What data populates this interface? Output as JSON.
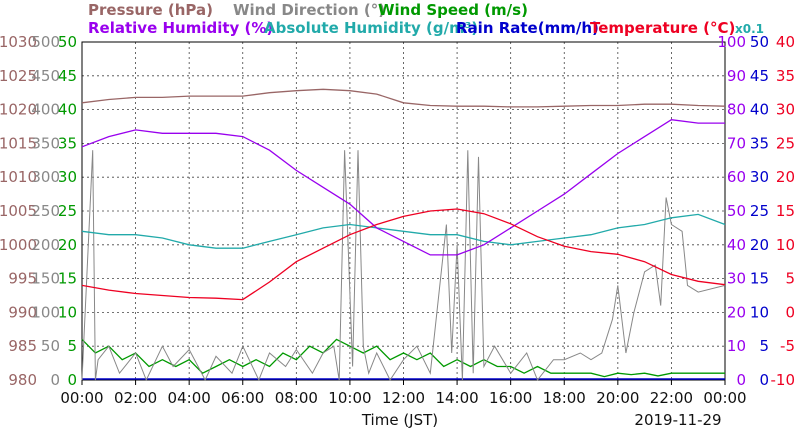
{
  "chart_data": {
    "type": "line",
    "title": "",
    "date": "2019-11-29",
    "xlabel": "Time (JST)",
    "x_ticks": [
      "00:00",
      "02:00",
      "04:00",
      "06:00",
      "08:00",
      "10:00",
      "12:00",
      "14:00",
      "16:00",
      "18:00",
      "20:00",
      "22:00",
      "00:00"
    ],
    "grid": true,
    "legend_rows": [
      [
        {
          "label": "Pressure (hPa)",
          "color": "#996666"
        },
        {
          "label": "Wind Direction (°)",
          "color": "#888888"
        },
        {
          "label": "Wind Speed (m/s)",
          "color": "#009900"
        }
      ],
      [
        {
          "label": "Relative Humidity (%)",
          "color": "#9900ee"
        },
        {
          "label": "Absolute Humidity (g/m³)",
          "color": "#22aaaa"
        },
        {
          "label": "Rain Rate(mm/h)",
          "color": "#0000cc"
        },
        {
          "label": "Temperature (°C)",
          "color": "#ee0022"
        },
        {
          "label": "x0.1",
          "color": "#22aaaa"
        }
      ]
    ],
    "axes": {
      "pressure": {
        "color": "#996666",
        "ticks": [
          "980",
          "985",
          "990",
          "995",
          "1000",
          "1005",
          "1010",
          "1015",
          "1020",
          "1025",
          "1030"
        ],
        "range": [
          980,
          1030
        ]
      },
      "wind_direction": {
        "color": "#888888",
        "ticks": [
          "0",
          "50",
          "100",
          "150",
          "200",
          "250",
          "300",
          "350",
          "400",
          "450",
          "500"
        ],
        "range": [
          0,
          500
        ]
      },
      "wind_speed": {
        "color": "#009900",
        "ticks": [
          "0",
          "5",
          "10",
          "15",
          "20",
          "25",
          "30",
          "35",
          "40",
          "45",
          "50"
        ],
        "range": [
          0,
          50
        ]
      },
      "relative_humidity": {
        "color": "#9900ee",
        "ticks": [
          "0",
          "10",
          "20",
          "30",
          "40",
          "50",
          "60",
          "70",
          "80",
          "90",
          "100"
        ],
        "range": [
          0,
          100
        ]
      },
      "rain_rate": {
        "color": "#0000cc",
        "ticks": [
          "0",
          "5",
          "10",
          "15",
          "20",
          "25",
          "30",
          "35",
          "40",
          "45",
          "50"
        ],
        "range": [
          0,
          50
        ]
      },
      "temperature": {
        "color": "#ee0022",
        "ticks": [
          "-10",
          "-5",
          "0",
          "5",
          "10",
          "15",
          "20",
          "25",
          "30",
          "35",
          "40"
        ],
        "range": [
          -10,
          40
        ]
      }
    },
    "series": [
      {
        "name": "Pressure (hPa)",
        "axis": "pressure",
        "color": "#996666",
        "x": [
          0,
          1,
          2,
          3,
          4,
          5,
          6,
          7,
          8,
          9,
          10,
          11,
          12,
          13,
          14,
          15,
          16,
          17,
          18,
          19,
          20,
          21,
          22,
          23,
          24
        ],
        "y": [
          1021,
          1021.5,
          1021.8,
          1021.8,
          1022,
          1022,
          1022,
          1022.5,
          1022.8,
          1023,
          1022.8,
          1022.3,
          1021,
          1020.6,
          1020.5,
          1020.5,
          1020.4,
          1020.4,
          1020.5,
          1020.6,
          1020.6,
          1020.8,
          1020.8,
          1020.6,
          1020.5
        ]
      },
      {
        "name": "Relative Humidity (%)",
        "axis": "relative_humidity",
        "color": "#9900ee",
        "x": [
          0,
          1,
          2,
          3,
          4,
          5,
          6,
          7,
          8,
          9,
          10,
          11,
          12,
          13,
          14,
          15,
          16,
          17,
          18,
          19,
          20,
          21,
          22,
          23,
          24
        ],
        "y": [
          69,
          72,
          74,
          73,
          73,
          73,
          72,
          68,
          62,
          57,
          52,
          45,
          41,
          37,
          37,
          40,
          45,
          50,
          55,
          61,
          67,
          72,
          77,
          76,
          76
        ]
      },
      {
        "name": "Absolute Humidity (g/m³)",
        "axis": "relative_humidity",
        "color": "#22aaaa",
        "x": [
          0,
          1,
          2,
          3,
          4,
          5,
          6,
          7,
          8,
          9,
          10,
          11,
          12,
          13,
          14,
          15,
          16,
          17,
          18,
          19,
          20,
          21,
          22,
          23,
          24
        ],
        "y": [
          44,
          43,
          43,
          42,
          40,
          39,
          39,
          41,
          43,
          45,
          46,
          45,
          44,
          43,
          43,
          41,
          40,
          41,
          42,
          43,
          45,
          46,
          48,
          49,
          46
        ]
      },
      {
        "name": "Temperature (°C)",
        "axis": "temperature",
        "color": "#ee0022",
        "x": [
          0,
          1,
          2,
          3,
          4,
          5,
          6,
          7,
          8,
          9,
          10,
          11,
          12,
          13,
          14,
          15,
          16,
          17,
          18,
          19,
          20,
          21,
          22,
          23,
          24
        ],
        "y": [
          4,
          3.3,
          2.8,
          2.5,
          2.2,
          2.1,
          1.9,
          4.5,
          7.5,
          9.5,
          11.5,
          13,
          14.2,
          15,
          15.3,
          14.6,
          13.1,
          11.2,
          9.8,
          9,
          8.6,
          7.5,
          5.6,
          4.6,
          4.1
        ]
      },
      {
        "name": "Wind Direction (°)",
        "axis": "wind_direction",
        "color": "#888888",
        "x": [
          0,
          0.4,
          0.5,
          0.6,
          1,
          1.4,
          2,
          2.4,
          3,
          3.4,
          4,
          4.6,
          5,
          5.6,
          6,
          6.6,
          7,
          7.6,
          8,
          8.6,
          9,
          9.4,
          9.6,
          9.8,
          10.1,
          10.3,
          10.5,
          10.7,
          11,
          11.5,
          12,
          12.5,
          13,
          13.6,
          13.8,
          14,
          14.2,
          14.4,
          14.6,
          14.8,
          15,
          15.4,
          16,
          16.6,
          17,
          17.6,
          18,
          18.6,
          19,
          19.4,
          19.8,
          20,
          20.3,
          20.6,
          21,
          21.4,
          21.6,
          21.8,
          22,
          22.4,
          22.6,
          23,
          24
        ],
        "y": [
          0,
          340,
          0,
          30,
          50,
          10,
          40,
          0,
          50,
          20,
          45,
          0,
          35,
          10,
          50,
          0,
          40,
          20,
          45,
          10,
          40,
          50,
          0,
          340,
          20,
          340,
          50,
          10,
          40,
          0,
          30,
          50,
          10,
          230,
          40,
          200,
          0,
          340,
          10,
          330,
          20,
          50,
          10,
          40,
          0,
          30,
          30,
          40,
          30,
          40,
          90,
          140,
          40,
          100,
          160,
          170,
          110,
          270,
          230,
          220,
          140,
          130,
          140
        ]
      },
      {
        "name": "Wind Speed (m/s)",
        "axis": "wind_speed",
        "color": "#009900",
        "x": [
          0,
          0.5,
          1,
          1.5,
          2,
          2.5,
          3,
          3.5,
          4,
          4.5,
          5,
          5.5,
          6,
          6.5,
          7,
          7.5,
          8,
          8.5,
          9,
          9.5,
          10,
          10.5,
          11,
          11.5,
          12,
          12.5,
          13,
          13.5,
          14,
          14.5,
          15,
          15.5,
          16,
          16.5,
          17,
          17.5,
          18,
          18.5,
          19,
          19.5,
          20,
          20.5,
          21,
          21.5,
          22,
          22.5,
          23,
          23.5,
          24
        ],
        "y": [
          6,
          4,
          5,
          3,
          4,
          2,
          3,
          2,
          3,
          1,
          2,
          3,
          2,
          3,
          2,
          4,
          3,
          5,
          4,
          6,
          5,
          4,
          5,
          3,
          4,
          3,
          4,
          2,
          3,
          2,
          3,
          2,
          2,
          1,
          2,
          1,
          1,
          1,
          1,
          0.5,
          1,
          0.8,
          1,
          0.6,
          1,
          1,
          1,
          1,
          1
        ]
      }
    ]
  }
}
